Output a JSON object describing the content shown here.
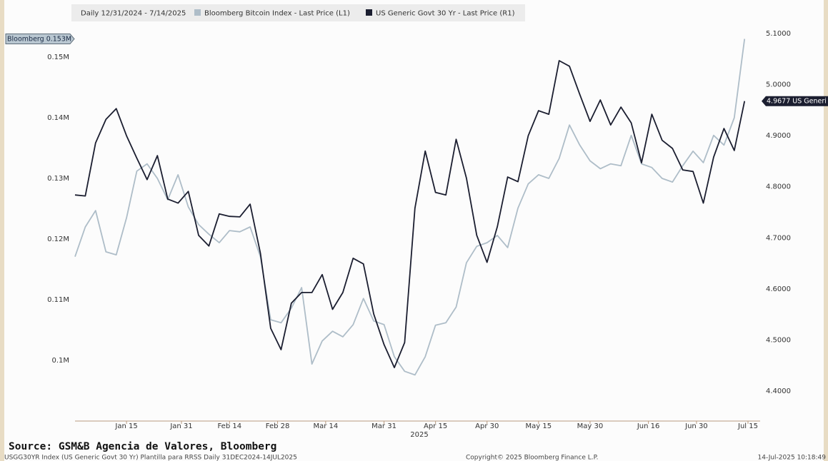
{
  "chart_data": {
    "type": "line",
    "legend_title": "Daily 12/31/2024 - 7/14/2025",
    "x": [
      "2024-12-31",
      "2025-01-03",
      "2025-01-06",
      "2025-01-09",
      "2025-01-12",
      "2025-01-15",
      "2025-01-18",
      "2025-01-21",
      "2025-01-24",
      "2025-01-27",
      "2025-01-30",
      "2025-02-02",
      "2025-02-05",
      "2025-02-08",
      "2025-02-11",
      "2025-02-14",
      "2025-02-17",
      "2025-02-20",
      "2025-02-23",
      "2025-02-26",
      "2025-03-01",
      "2025-03-04",
      "2025-03-07",
      "2025-03-10",
      "2025-03-13",
      "2025-03-16",
      "2025-03-19",
      "2025-03-22",
      "2025-03-25",
      "2025-03-28",
      "2025-03-31",
      "2025-04-03",
      "2025-04-06",
      "2025-04-09",
      "2025-04-12",
      "2025-04-15",
      "2025-04-18",
      "2025-04-21",
      "2025-04-24",
      "2025-04-27",
      "2025-04-30",
      "2025-05-03",
      "2025-05-06",
      "2025-05-09",
      "2025-05-12",
      "2025-05-15",
      "2025-05-18",
      "2025-05-21",
      "2025-05-24",
      "2025-05-27",
      "2025-05-30",
      "2025-06-02",
      "2025-06-05",
      "2025-06-08",
      "2025-06-11",
      "2025-06-14",
      "2025-06-17",
      "2025-06-20",
      "2025-06-23",
      "2025-06-26",
      "2025-06-29",
      "2025-07-02",
      "2025-07-05",
      "2025-07-08",
      "2025-07-11",
      "2025-07-14"
    ],
    "xlim": [
      "2024-12-31",
      "2025-07-15"
    ],
    "xticks": [
      {
        "value": "2025-01-15",
        "label": "Jan 15"
      },
      {
        "value": "2025-01-31",
        "label": "Jan 31"
      },
      {
        "value": "2025-02-14",
        "label": "Feb 14"
      },
      {
        "value": "2025-02-28",
        "label": "Feb 28"
      },
      {
        "value": "2025-03-14",
        "label": "Mar 14"
      },
      {
        "value": "2025-03-31",
        "label": "Mar 31"
      },
      {
        "value": "2025-04-15",
        "label": "Apr 15"
      },
      {
        "value": "2025-04-30",
        "label": "Apr 30"
      },
      {
        "value": "2025-05-15",
        "label": "May 15"
      },
      {
        "value": "2025-05-30",
        "label": "May 30"
      },
      {
        "value": "2025-06-16",
        "label": "Jun 16"
      },
      {
        "value": "2025-06-30",
        "label": "Jun 30"
      },
      {
        "value": "2025-07-15",
        "label": "Jul 15"
      }
    ],
    "x_year_label": "2025",
    "ylim": [
      0.09,
      0.1553
    ],
    "yticks": [
      {
        "value": 0.1,
        "label": "0.1M"
      },
      {
        "value": 0.11,
        "label": "0.11M"
      },
      {
        "value": 0.12,
        "label": "0.12M"
      },
      {
        "value": 0.13,
        "label": "0.13M"
      },
      {
        "value": 0.14,
        "label": "0.14M"
      },
      {
        "value": 0.15,
        "label": "0.15M"
      }
    ],
    "y2lim": [
      4.3413,
      5.1168
    ],
    "y2ticks": [
      {
        "value": 4.4,
        "label": "4.4000"
      },
      {
        "value": 4.5,
        "label": "4.5000"
      },
      {
        "value": 4.6,
        "label": "4.6000"
      },
      {
        "value": 4.7,
        "label": "4.7000"
      },
      {
        "value": 4.8,
        "label": "4.8000"
      },
      {
        "value": 4.9,
        "label": "4.9000"
      },
      {
        "value": 5.0,
        "label": "5.0000"
      },
      {
        "value": 5.1,
        "label": "5.1000"
      }
    ],
    "grid": false,
    "series": [
      {
        "name": "Bloomberg Bitcoin Index - Last Price (L1)",
        "color": "#aebdc8",
        "axis": "y",
        "last_value_label": "Bloomberg 0.153M",
        "values": [
          0.1171,
          0.122,
          0.1247,
          0.1179,
          0.1174,
          0.1235,
          0.1312,
          0.1324,
          0.13,
          0.1265,
          0.1306,
          0.1253,
          0.1224,
          0.1208,
          0.1194,
          0.1214,
          0.1212,
          0.122,
          0.1171,
          0.1067,
          0.1062,
          0.1086,
          0.112,
          0.0994,
          0.1032,
          0.1048,
          0.1039,
          0.1059,
          0.1102,
          0.1065,
          0.1059,
          0.1006,
          0.0982,
          0.0976,
          0.1006,
          0.1058,
          0.1062,
          0.1088,
          0.1161,
          0.1188,
          0.1194,
          0.1206,
          0.1186,
          0.1251,
          0.1291,
          0.1306,
          0.13,
          0.1333,
          0.1388,
          0.1355,
          0.1329,
          0.1316,
          0.1324,
          0.1321,
          0.1371,
          0.1324,
          0.1318,
          0.13,
          0.1294,
          0.1321,
          0.1345,
          0.1326,
          0.1371,
          0.1355,
          0.14,
          0.153
        ]
      },
      {
        "name": "US Generic Govt 30 Yr - Last Price (R1)",
        "color": "#1b1e30",
        "axis": "y2",
        "last_value_label": "4.9677 US Generi",
        "values": [
          4.784,
          4.782,
          4.886,
          4.932,
          4.953,
          4.9,
          4.856,
          4.814,
          4.861,
          4.776,
          4.768,
          4.791,
          4.705,
          4.684,
          4.747,
          4.742,
          4.741,
          4.766,
          4.67,
          4.523,
          4.481,
          4.572,
          4.593,
          4.593,
          4.628,
          4.56,
          4.593,
          4.66,
          4.649,
          4.551,
          4.491,
          4.446,
          4.495,
          4.758,
          4.87,
          4.789,
          4.784,
          4.893,
          4.817,
          4.705,
          4.652,
          4.722,
          4.819,
          4.81,
          4.9,
          4.949,
          4.942,
          5.047,
          5.036,
          4.981,
          4.928,
          4.97,
          4.921,
          4.956,
          4.925,
          4.847,
          4.942,
          4.891,
          4.875,
          4.833,
          4.83,
          4.768,
          4.858,
          4.914,
          4.871,
          4.9677
        ]
      }
    ]
  },
  "footer": {
    "source": "Source: GSM&B Agencia de Valores, Bloomberg",
    "description": "USGG30YR Index (US Generic Govt 30 Yr) Plantilla para RRSS  Daily 31DEC2024-14JUL2025",
    "copyright": "Copyright© 2025 Bloomberg Finance L.P.",
    "timestamp": "14-Jul-2025 10:18:49"
  }
}
